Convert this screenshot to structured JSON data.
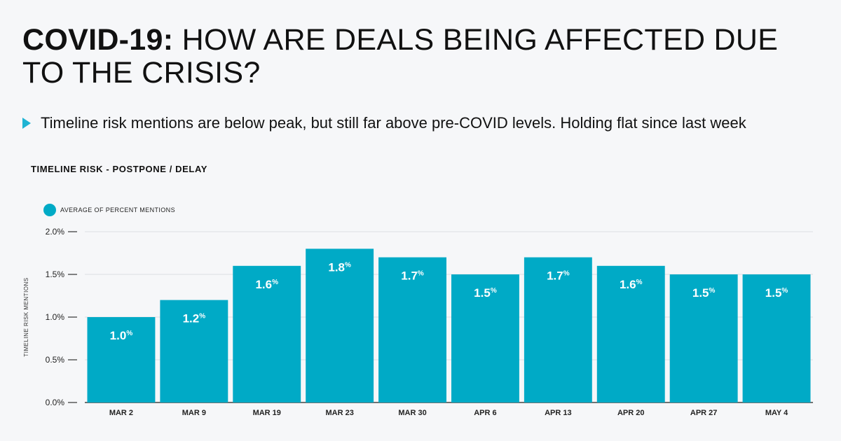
{
  "header": {
    "title_bold": "COVID-19:",
    "title_rest": " HOW ARE DEALS BEING AFFECTED DUE TO THE CRISIS?",
    "subtitle": "Timeline risk mentions are below peak, but still far above pre-COVID levels. Holding flat since last week"
  },
  "colors": {
    "bar": "#00aac6",
    "accent": "#1fb3d3"
  },
  "chart_data": {
    "type": "bar",
    "title": "TIMELINE RISK - POSTPONE / DELAY",
    "ylabel": "TIMELINE RISK MENTIONS",
    "xlabel": "",
    "legend": "top-left",
    "grid": true,
    "ylim": [
      0,
      2.0
    ],
    "yticks": [
      "0.0%",
      "0.5%",
      "1.0%",
      "1.5%",
      "2.0%"
    ],
    "categories": [
      "MAR 2",
      "MAR 9",
      "MAR 19",
      "MAR 23",
      "MAR 30",
      "APR 6",
      "APR 13",
      "APR 20",
      "APR 27",
      "MAY 4"
    ],
    "series": [
      {
        "name": "AVERAGE OF PERCENT MENTIONS",
        "values": [
          1.0,
          1.2,
          1.6,
          1.8,
          1.7,
          1.5,
          1.7,
          1.6,
          1.5,
          1.5
        ],
        "labels": [
          "1.0",
          "1.2",
          "1.6",
          "1.8",
          "1.7",
          "1.5",
          "1.7",
          "1.6",
          "1.5",
          "1.5"
        ],
        "label_suffix": "%"
      }
    ]
  }
}
